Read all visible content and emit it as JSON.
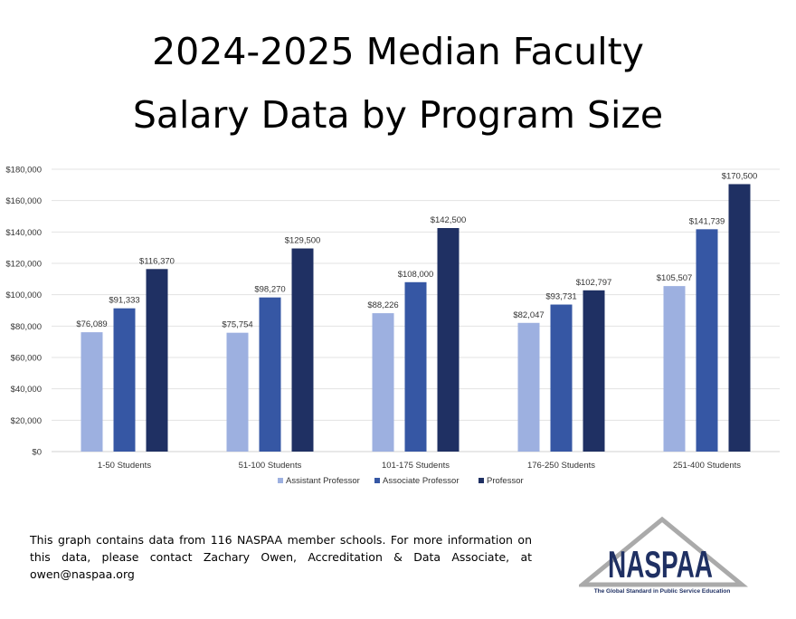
{
  "title_lines": [
    "2024-2025 Median Faculty",
    "Salary Data by Program Size"
  ],
  "chart_data": {
    "type": "bar",
    "categories": [
      "1-50 Students",
      "51-100 Students",
      "101-175 Students",
      "176-250 Students",
      "251-400 Students"
    ],
    "series": [
      {
        "name": "Assistant Professor",
        "values": [
          76089,
          75754,
          88226,
          82047,
          105507
        ],
        "color": "#9DB0E0"
      },
      {
        "name": "Associate Professor",
        "values": [
          91333,
          98270,
          108000,
          93731,
          141739
        ],
        "color": "#3657A4"
      },
      {
        "name": "Professor",
        "values": [
          116370,
          129500,
          142500,
          102797,
          170500
        ],
        "color": "#1F3063"
      }
    ],
    "ylim": [
      0,
      180000
    ],
    "yticks": [
      "$0",
      "$20,000",
      "$40,000",
      "$60,000",
      "$80,000",
      "$100,000",
      "$120,000",
      "$140,000",
      "$160,000",
      "$180,000"
    ],
    "data_labels": [
      [
        "$76,089",
        "$75,754",
        "$88,226",
        "$82,047",
        "$105,507"
      ],
      [
        "$91,333",
        "$98,270",
        "$108,000",
        "$93,731",
        "$141,739"
      ],
      [
        "$116,370",
        "$129,500",
        "$142,500",
        "$102,797",
        "$170,500"
      ]
    ],
    "grid": true,
    "legend": "bottom",
    "title": "",
    "xlabel": "",
    "ylabel": ""
  },
  "footer": "This graph contains data from 116 NASPAA member schools. For more information on this data, please contact Zachary Owen, Accreditation & Data Associate, at owen@naspaa.org",
  "logo": {
    "text": "NASPAA",
    "tagline": "The Global Standard in Public Service Education"
  }
}
